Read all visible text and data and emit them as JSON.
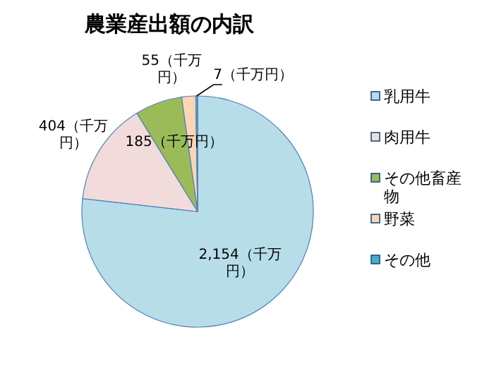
{
  "chart_data": {
    "type": "pie",
    "title": "農業産出額の内訳",
    "categories": [
      "乳用牛",
      "肉用牛",
      "その他畜産物",
      "野菜",
      "その他"
    ],
    "values": [
      2154,
      404,
      185,
      55,
      7
    ],
    "colors": [
      "#b7dde8",
      "#f2dcdb",
      "#9bbb59",
      "#fcd5b5",
      "#4bacc6"
    ],
    "value_labels": [
      "2,154（千万円）",
      "404（千万円）",
      "185（千万円）",
      "55（千万円）",
      "7（千万円）"
    ],
    "legend": "right"
  }
}
